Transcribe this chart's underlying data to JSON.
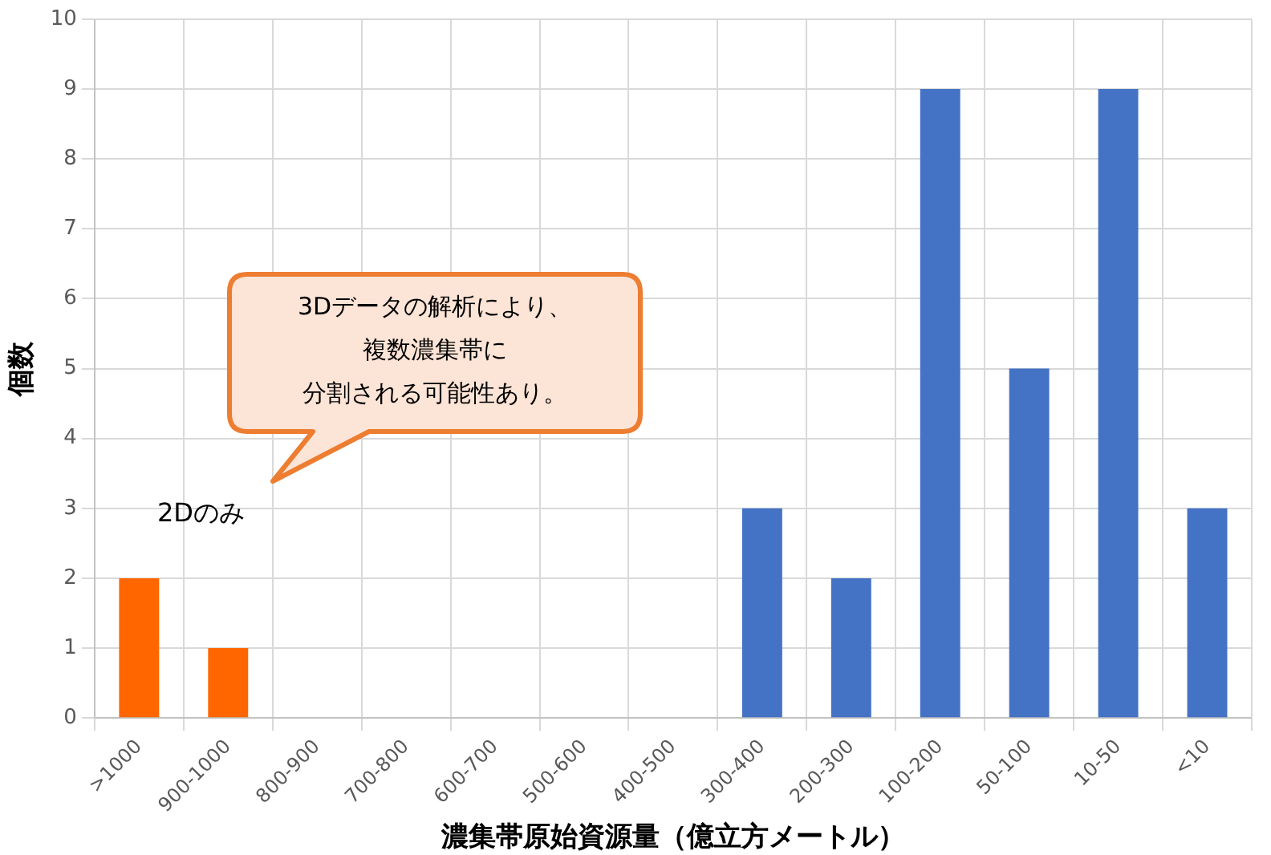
{
  "chart_data": {
    "type": "bar",
    "xlabel": "濃集帯原始資源量（億立方メートル）",
    "ylabel": "個数",
    "categories": [
      ">1000",
      "900-1000",
      "800-900",
      "700-800",
      "600-700",
      "500-600",
      "400-500",
      "300-400",
      "200-300",
      "100-200",
      "50-100",
      "10-50",
      "<10"
    ],
    "values": [
      2,
      1,
      0,
      0,
      0,
      0,
      0,
      3,
      2,
      9,
      5,
      9,
      3
    ],
    "colors": [
      "#ff6600",
      "#ff6600",
      "#4472c4",
      "#4472c4",
      "#4472c4",
      "#4472c4",
      "#4472c4",
      "#4472c4",
      "#4472c4",
      "#4472c4",
      "#4472c4",
      "#4472c4",
      "#4472c4"
    ],
    "ylim": [
      0,
      10
    ],
    "yticks": [
      0,
      1,
      2,
      3,
      4,
      5,
      6,
      7,
      8,
      9,
      10
    ],
    "grid": true,
    "legend": false,
    "annotations": [
      "3Dデータの解析により、",
      "複数濃集帯に",
      "分割される可能性あり。",
      "2Dのみ"
    ]
  }
}
